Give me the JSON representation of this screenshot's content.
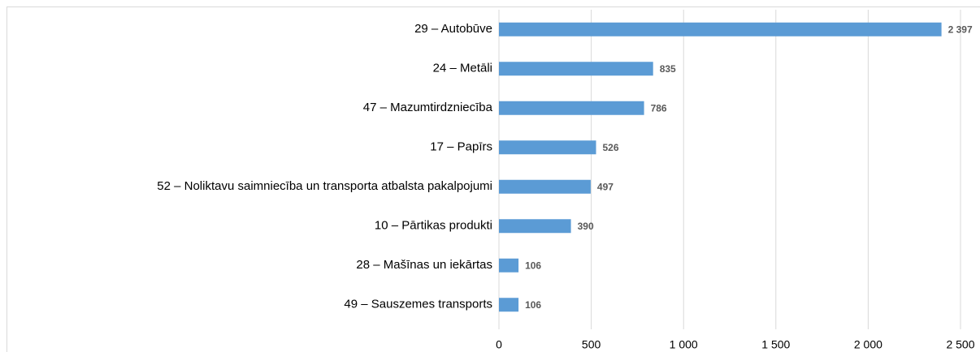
{
  "chart_data": {
    "type": "hbar",
    "categories": [
      "29 – Autobūve",
      "24 – Metāli",
      "47 – Mazumtirdzniecība",
      "17 – Papīrs",
      "52 – Noliktavu saimniecība un transporta atbalsta pakalpojumi",
      "10 – Pārtikas produkti",
      "28 – Mašīnas un iekārtas",
      "49 – Sauszemes transports"
    ],
    "values": [
      2397,
      835,
      786,
      526,
      497,
      390,
      106,
      106
    ],
    "value_labels": [
      "2 397",
      "835",
      "786",
      "526",
      "497",
      "390",
      "106",
      "106"
    ],
    "color": "#5b9bd5",
    "xlim": [
      0,
      2500
    ],
    "xticks": [
      0,
      500,
      {
        "value": 1000,
        "label": "1 000"
      },
      {
        "value": 1500,
        "label": "1 500"
      },
      {
        "value": 2000,
        "label": "2 000"
      },
      {
        "value": 2500,
        "label": "2 500"
      }
    ],
    "grid": true
  }
}
